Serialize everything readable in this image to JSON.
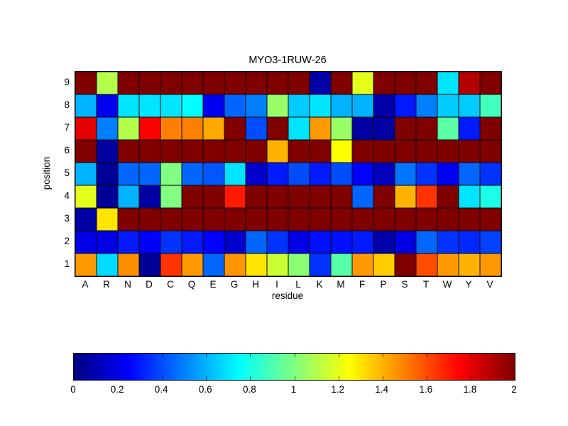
{
  "chart_data": {
    "type": "heatmap",
    "title": "MYO3-1RUW-26",
    "xlabel": "residue",
    "ylabel": "position",
    "columns": [
      "A",
      "R",
      "N",
      "D",
      "C",
      "Q",
      "E",
      "G",
      "H",
      "I",
      "L",
      "K",
      "M",
      "F",
      "P",
      "S",
      "T",
      "W",
      "Y",
      "V"
    ],
    "rows": [
      "9",
      "8",
      "7",
      "6",
      "5",
      "4",
      "3",
      "2",
      "1"
    ],
    "values": [
      [
        2.0,
        1.1,
        2.0,
        2.0,
        2.0,
        2.0,
        2.0,
        2.0,
        2.0,
        2.0,
        2.0,
        0.08,
        2.0,
        1.2,
        2.0,
        2.0,
        2.0,
        0.7,
        1.9,
        2.0
      ],
      [
        0.6,
        0.22,
        0.7,
        0.7,
        0.7,
        0.75,
        0.22,
        0.45,
        0.5,
        1.05,
        0.65,
        0.7,
        0.6,
        0.6,
        0.08,
        0.3,
        0.5,
        0.65,
        0.65,
        0.88
      ],
      [
        1.8,
        0.5,
        1.1,
        1.75,
        1.5,
        1.5,
        1.42,
        2.0,
        0.4,
        2.0,
        0.7,
        1.45,
        1.05,
        0.07,
        0.07,
        2.0,
        2.0,
        0.93,
        0.3,
        2.0
      ],
      [
        2.0,
        0.06,
        2.0,
        2.0,
        2.0,
        2.0,
        2.0,
        2.0,
        2.0,
        1.4,
        2.0,
        2.0,
        1.25,
        2.0,
        2.0,
        2.0,
        2.0,
        2.0,
        2.0,
        2.0
      ],
      [
        0.6,
        0.05,
        0.45,
        0.45,
        1.0,
        0.45,
        0.42,
        0.7,
        0.15,
        0.3,
        0.4,
        0.3,
        0.4,
        0.25,
        0.12,
        0.48,
        0.35,
        0.22,
        0.45,
        0.35
      ],
      [
        1.2,
        0.05,
        0.6,
        0.07,
        1.0,
        2.0,
        2.0,
        1.7,
        2.0,
        2.0,
        2.0,
        2.0,
        2.0,
        0.45,
        2.0,
        1.4,
        1.65,
        2.0,
        0.7,
        0.8
      ],
      [
        0.07,
        1.3,
        2.0,
        2.0,
        2.0,
        2.0,
        2.0,
        2.0,
        2.0,
        2.0,
        2.0,
        2.0,
        2.0,
        2.0,
        2.0,
        2.0,
        2.0,
        2.0,
        2.0,
        2.0
      ],
      [
        0.2,
        0.2,
        0.3,
        0.25,
        0.35,
        0.3,
        0.25,
        0.15,
        0.45,
        0.35,
        0.2,
        0.28,
        0.28,
        0.3,
        0.08,
        0.2,
        0.45,
        0.35,
        0.33,
        0.38
      ],
      [
        1.45,
        0.68,
        1.47,
        0.05,
        1.65,
        1.45,
        0.45,
        1.46,
        1.3,
        1.15,
        1.02,
        0.35,
        0.92,
        1.45,
        1.35,
        2.0,
        1.6,
        1.45,
        1.4,
        1.45
      ]
    ],
    "colormap": "jet",
    "color_range": [
      0,
      2
    ],
    "colorbar_ticks": [
      "0",
      "0.2",
      "0.4",
      "0.6",
      "0.8",
      "1",
      "1.2",
      "1.4",
      "1.6",
      "1.8",
      "2"
    ],
    "legend_position": "horizontal-bottom",
    "grid": true
  }
}
